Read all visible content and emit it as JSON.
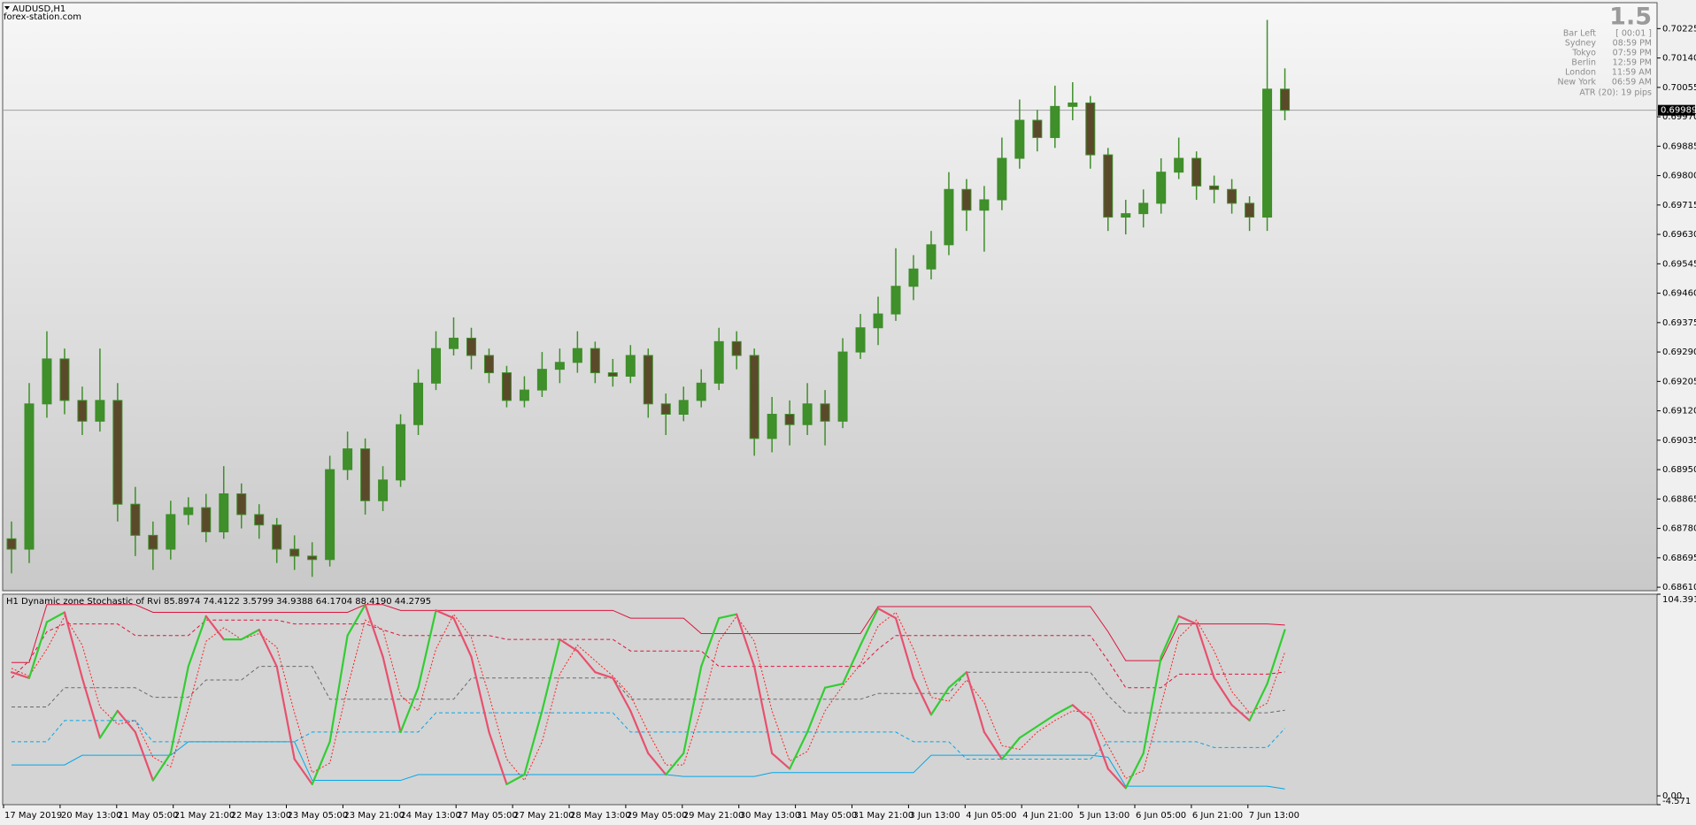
{
  "chart_data": [
    {
      "type": "candlestick",
      "title": "AUDUSD,H1",
      "subtitle": "forex-station.com",
      "up_color": "#3f8f2a",
      "down_color": "#5a4a2a",
      "open": [
        0.6875,
        0.6872,
        0.6914,
        0.6927,
        0.6915,
        0.6909,
        0.6915,
        0.6885,
        0.6876,
        0.6872,
        0.6882,
        0.6884,
        0.6877,
        0.6888,
        0.6882,
        0.6879,
        0.6872,
        0.687,
        0.6869,
        0.6895,
        0.6901,
        0.6886,
        0.6892,
        0.6908,
        0.692,
        0.693,
        0.6933,
        0.6928,
        0.6923,
        0.6915,
        0.6918,
        0.6924,
        0.6926,
        0.693,
        0.6923,
        0.6922,
        0.6928,
        0.6914,
        0.6911,
        0.6915,
        0.692,
        0.6932,
        0.6928,
        0.6904,
        0.6911,
        0.6908,
        0.6914,
        0.6909,
        0.6929,
        0.6936,
        0.694,
        0.6948,
        0.6953,
        0.696,
        0.6976,
        0.697,
        0.6973,
        0.6985,
        0.6996,
        0.6991,
        0.7,
        0.7001,
        0.6986,
        0.6968,
        0.6969,
        0.6972,
        0.6981,
        0.6985,
        0.6977,
        0.6976,
        0.6972,
        0.6968,
        0.7005
      ],
      "high": [
        0.688,
        0.692,
        0.6935,
        0.693,
        0.6919,
        0.693,
        0.692,
        0.689,
        0.688,
        0.6886,
        0.6887,
        0.6888,
        0.6896,
        0.6891,
        0.6885,
        0.6881,
        0.6876,
        0.6874,
        0.6899,
        0.6906,
        0.6904,
        0.6896,
        0.6911,
        0.6924,
        0.6935,
        0.6939,
        0.6936,
        0.693,
        0.6925,
        0.6922,
        0.6929,
        0.693,
        0.6935,
        0.6932,
        0.6927,
        0.6931,
        0.693,
        0.6917,
        0.6919,
        0.6924,
        0.6936,
        0.6935,
        0.693,
        0.6916,
        0.6915,
        0.692,
        0.6918,
        0.6933,
        0.694,
        0.6945,
        0.6959,
        0.6957,
        0.6964,
        0.6981,
        0.6979,
        0.6977,
        0.6991,
        0.7002,
        0.6999,
        0.7006,
        0.7007,
        0.7003,
        0.6988,
        0.6973,
        0.6976,
        0.6985,
        0.6991,
        0.6987,
        0.698,
        0.6979,
        0.6974,
        0.7025,
        0.7011
      ],
      "low": [
        0.6865,
        0.6868,
        0.691,
        0.6911,
        0.6905,
        0.6906,
        0.688,
        0.687,
        0.6866,
        0.6869,
        0.6879,
        0.6874,
        0.6875,
        0.6878,
        0.6875,
        0.6868,
        0.6866,
        0.6864,
        0.6867,
        0.6892,
        0.6882,
        0.6883,
        0.689,
        0.6905,
        0.6918,
        0.6928,
        0.6924,
        0.692,
        0.6913,
        0.6913,
        0.6916,
        0.692,
        0.6923,
        0.692,
        0.6919,
        0.692,
        0.691,
        0.6905,
        0.6909,
        0.6913,
        0.6918,
        0.6924,
        0.6899,
        0.69,
        0.6902,
        0.6905,
        0.6902,
        0.6907,
        0.6927,
        0.6931,
        0.6938,
        0.6944,
        0.695,
        0.6957,
        0.6964,
        0.6958,
        0.697,
        0.6982,
        0.6987,
        0.6988,
        0.6996,
        0.6982,
        0.6964,
        0.6963,
        0.6965,
        0.6969,
        0.6979,
        0.6973,
        0.6972,
        0.6969,
        0.6964,
        0.6964,
        0.6996
      ],
      "close": [
        0.6872,
        0.6914,
        0.6927,
        0.6915,
        0.6909,
        0.6915,
        0.6885,
        0.6876,
        0.6872,
        0.6882,
        0.6884,
        0.6877,
        0.6888,
        0.6882,
        0.6879,
        0.6872,
        0.687,
        0.6869,
        0.6895,
        0.6901,
        0.6886,
        0.6892,
        0.6908,
        0.692,
        0.693,
        0.6933,
        0.6928,
        0.6923,
        0.6915,
        0.6918,
        0.6924,
        0.6926,
        0.693,
        0.6923,
        0.6922,
        0.6928,
        0.6914,
        0.6911,
        0.6915,
        0.692,
        0.6932,
        0.6928,
        0.6904,
        0.6911,
        0.6908,
        0.6914,
        0.6909,
        0.6929,
        0.6936,
        0.694,
        0.6948,
        0.6953,
        0.696,
        0.6976,
        0.697,
        0.6973,
        0.6985,
        0.6996,
        0.6991,
        0.7,
        0.7001,
        0.6986,
        0.6968,
        0.6969,
        0.6972,
        0.6981,
        0.6985,
        0.6977,
        0.6976,
        0.6972,
        0.6968,
        0.7005,
        0.69989
      ],
      "current_price": 0.69989,
      "ylim": [
        0.686,
        0.703
      ],
      "yticks": [
        0.70225,
        {
          "value": 0.7014,
          "label": "0.70140"
        },
        0.70055,
        {
          "value": 0.6997,
          "label": "0.69970"
        },
        0.69885,
        {
          "value": 0.698,
          "label": "0.69800"
        },
        0.69715,
        {
          "value": 0.6963,
          "label": "0.69630"
        },
        0.69545,
        {
          "value": 0.6946,
          "label": "0.69460"
        },
        0.69375,
        {
          "value": 0.6929,
          "label": "0.69290"
        },
        0.69205,
        {
          "value": 0.6912,
          "label": "0.69120"
        },
        0.69035,
        {
          "value": 0.6895,
          "label": "0.68950"
        },
        0.68865,
        {
          "value": 0.6878,
          "label": "0.68780"
        },
        0.68695,
        {
          "value": 0.6861,
          "label": "0.68610"
        }
      ],
      "xticks": [
        "17 May 2019",
        "20 May 13:00",
        "21 May 05:00",
        "21 May 21:00",
        "22 May 13:00",
        "23 May 05:00",
        "23 May 21:00",
        "24 May 13:00",
        "27 May 05:00",
        "27 May 21:00",
        "28 May 13:00",
        "29 May 05:00",
        "29 May 21:00",
        "30 May 13:00",
        "31 May 05:00",
        "31 May 21:00",
        "3 Jun 13:00",
        "4 Jun 05:00",
        "4 Jun 21:00",
        "5 Jun 13:00",
        "6 Jun 05:00",
        "6 Jun 21:00",
        "7 Jun 13:00"
      ]
    },
    {
      "type": "line",
      "title": "H1 Dynamic zone Stochastic of Rvi 85.8974 74.4122 3.5799 34.9388 64.1704 88.4190 44.2795",
      "ylim": [
        -4.571,
        104.391
      ],
      "yticks": [
        104.391,
        {
          "value": 0,
          "label": "0.00"
        },
        -4.571
      ],
      "series": [
        {
          "color": "#dc143c",
          "style": "solid",
          "values": [
            69,
            69,
            99,
            99,
            99,
            99,
            99,
            99,
            95,
            95,
            95,
            95,
            95,
            95,
            95,
            95,
            95,
            95,
            95,
            95,
            99,
            99,
            96,
            96,
            96,
            96,
            96,
            96,
            96,
            96,
            96,
            96,
            96,
            96,
            96,
            92,
            92,
            92,
            92,
            84,
            84,
            84,
            84,
            84,
            84,
            84,
            84,
            84,
            84,
            98,
            98,
            98,
            98,
            98,
            98,
            98,
            98,
            98,
            98,
            98,
            98,
            98,
            85,
            70,
            70,
            70,
            89,
            89,
            89,
            89,
            89,
            89,
            88.419
          ]
        },
        {
          "color": "#dc143c",
          "style": "dashed",
          "values": [
            61,
            70,
            85,
            89,
            89,
            89,
            89,
            83,
            83,
            83,
            83,
            91,
            91,
            91,
            91,
            91,
            89,
            89,
            89,
            89,
            89,
            86,
            83,
            83,
            83,
            83,
            83,
            83,
            81,
            81,
            81,
            81,
            81,
            81,
            81,
            75,
            75,
            75,
            75,
            75,
            67,
            67,
            67,
            67,
            67,
            67,
            67,
            67,
            67,
            76,
            83,
            83,
            83,
            83,
            83,
            83,
            83,
            83,
            83,
            83,
            83,
            83,
            70,
            56,
            56,
            56,
            63,
            63,
            63,
            63,
            63,
            63,
            64.1704
          ]
        },
        {
          "color": "#696969",
          "style": "dashed",
          "values": [
            46,
            46,
            46,
            56,
            56,
            56,
            56,
            56,
            51,
            51,
            51,
            60,
            60,
            60,
            67,
            67,
            67,
            67,
            50,
            50,
            50,
            50,
            50,
            50,
            50,
            50,
            61,
            61,
            61,
            61,
            61,
            61,
            61,
            61,
            61,
            50,
            50,
            50,
            50,
            50,
            50,
            50,
            50,
            50,
            50,
            50,
            50,
            50,
            50,
            53,
            53,
            53,
            53,
            53,
            64,
            64,
            64,
            64,
            64,
            64,
            64,
            64,
            52,
            43,
            43,
            43,
            43,
            43,
            43,
            43,
            43,
            43,
            44.2795
          ]
        },
        {
          "color": "#00a8e8",
          "style": "dashed",
          "values": [
            28,
            28,
            28,
            39,
            39,
            39,
            39,
            39,
            28,
            28,
            28,
            28,
            28,
            28,
            28,
            28,
            28,
            33,
            33,
            33,
            33,
            33,
            33,
            33,
            43,
            43,
            43,
            43,
            43,
            43,
            43,
            43,
            43,
            43,
            43,
            33,
            33,
            33,
            33,
            33,
            33,
            33,
            33,
            33,
            33,
            33,
            33,
            33,
            33,
            33,
            33,
            28,
            28,
            28,
            19,
            19,
            19,
            19,
            19,
            19,
            19,
            19,
            28,
            28,
            28,
            28,
            28,
            28,
            25,
            25,
            25,
            25,
            34.9388
          ]
        },
        {
          "color": "#00a8e8",
          "style": "solid",
          "values": [
            16,
            16,
            16,
            16,
            21,
            21,
            21,
            21,
            21,
            21,
            28,
            28,
            28,
            28,
            28,
            28,
            28,
            8,
            8,
            8,
            8,
            8,
            8,
            11,
            11,
            11,
            11,
            11,
            11,
            11,
            11,
            11,
            11,
            11,
            11,
            11,
            11,
            11,
            10,
            10,
            10,
            10,
            10,
            12,
            12,
            12,
            12,
            12,
            12,
            12,
            12,
            12,
            21,
            21,
            21,
            21,
            21,
            21,
            21,
            21,
            21,
            21,
            20,
            5,
            5,
            5,
            5,
            5,
            5,
            5,
            5,
            5,
            3.5799
          ]
        },
        {
          "color": "#ff2020",
          "style": "dotted",
          "values": [
            66,
            62,
            76,
            93,
            78,
            46,
            37,
            39,
            20,
            15,
            45,
            80,
            87,
            81,
            84,
            77,
            43,
            12,
            17,
            56,
            91,
            86,
            52,
            44,
            76,
            94,
            82,
            52,
            19,
            8,
            28,
            63,
            78,
            70,
            62,
            52,
            33,
            16,
            16,
            45,
            80,
            93,
            80,
            44,
            18,
            23,
            44,
            57,
            68,
            88,
            95,
            76,
            51,
            49,
            60,
            48,
            26,
            24,
            33,
            39,
            44,
            43,
            26,
            9,
            13,
            47,
            82,
            91,
            75,
            54,
            43,
            48,
            74.4122
          ]
        },
        {
          "color": "#32cd32",
          "color_down": "#e8506e",
          "style": "thick",
          "values": [
            64,
            61,
            90,
            95,
            61,
            30,
            44,
            33,
            8,
            22,
            67,
            93,
            81,
            81,
            86,
            67,
            19,
            6,
            28,
            83,
            99,
            72,
            33,
            56,
            96,
            92,
            72,
            33,
            6,
            11,
            44,
            81,
            75,
            64,
            61,
            44,
            22,
            11,
            22,
            67,
            92,
            94,
            67,
            22,
            14,
            33,
            56,
            58,
            78,
            97,
            92,
            61,
            42,
            56,
            64,
            33,
            19,
            30,
            36,
            42,
            47,
            39,
            14,
            4,
            22,
            72,
            93,
            89,
            61,
            47,
            39,
            58,
            85.8974
          ]
        }
      ]
    }
  ],
  "info_panel": {
    "spread": 1.5,
    "rows": [
      [
        "Bar Left",
        "[ 00:01 ]"
      ],
      [
        "Sydney",
        "08:59 PM"
      ],
      [
        "Tokyo",
        "07:59 PM"
      ],
      [
        "Berlin",
        "12:59 PM"
      ],
      [
        "London",
        "11:59 AM"
      ],
      [
        "New York",
        "06:59 AM"
      ]
    ],
    "atr": "ATR (20): 19 pips"
  }
}
